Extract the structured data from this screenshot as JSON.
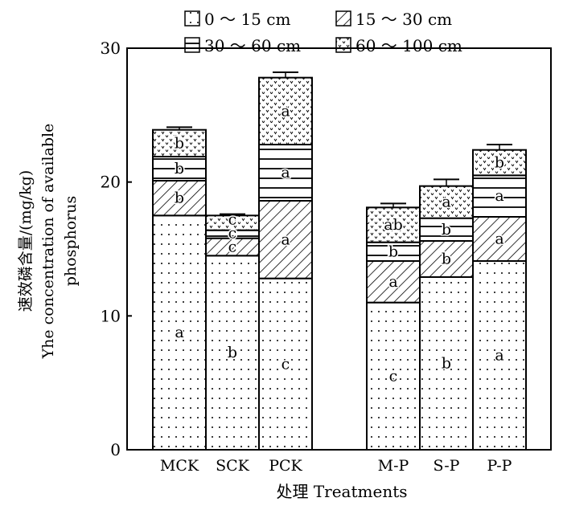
{
  "chart_data": {
    "type": "bar",
    "stacked": true,
    "categories": [
      "MCK",
      "SCK",
      "PCK",
      "M-P",
      "S-P",
      "P-P"
    ],
    "series": [
      {
        "name": "0 ～ 15 cm",
        "pattern": "dots",
        "values": [
          17.5,
          14.5,
          12.8,
          11.0,
          12.9,
          14.1
        ],
        "errors": [
          0.1,
          0.1,
          0.1,
          0.3,
          0.4,
          0.1
        ],
        "letters": [
          "a",
          "b",
          "c",
          "c",
          "b",
          "a"
        ]
      },
      {
        "name": "15 ～ 30 cm",
        "pattern": "hatch",
        "values": [
          2.6,
          1.3,
          5.8,
          3.1,
          2.7,
          3.3
        ],
        "errors": [
          0.1,
          0.1,
          0.1,
          0.2,
          0.3,
          0.2
        ],
        "letters": [
          "b",
          "c",
          "a",
          "a",
          "b",
          "a"
        ]
      },
      {
        "name": "30 ～ 60 cm",
        "pattern": "hlines",
        "values": [
          1.8,
          0.6,
          4.2,
          1.4,
          1.7,
          3.1
        ],
        "errors": [
          0.1,
          0.2,
          0.1,
          0.2,
          0.3,
          0.1
        ],
        "letters": [
          "b",
          "c",
          "a",
          "b",
          "b",
          "a"
        ]
      },
      {
        "name": "60 ～ 100 cm",
        "pattern": "vdots",
        "values": [
          2.0,
          1.1,
          5.0,
          2.6,
          2.4,
          1.9
        ],
        "errors": [
          0.2,
          0.1,
          0.4,
          0.3,
          0.5,
          0.4
        ],
        "letters": [
          "b",
          "c",
          "a",
          "ab",
          "a",
          "b"
        ]
      }
    ],
    "title": "",
    "xlabel": "处理 Treatments",
    "ylabel_lines": [
      "速效磷含量/(mg/kg)",
      "Yhe concentration of available",
      "phosphorus"
    ],
    "ylim": [
      0,
      30
    ],
    "yticks": [
      "0",
      "10",
      "20",
      "30"
    ],
    "grid": false,
    "legend_position": "top"
  }
}
